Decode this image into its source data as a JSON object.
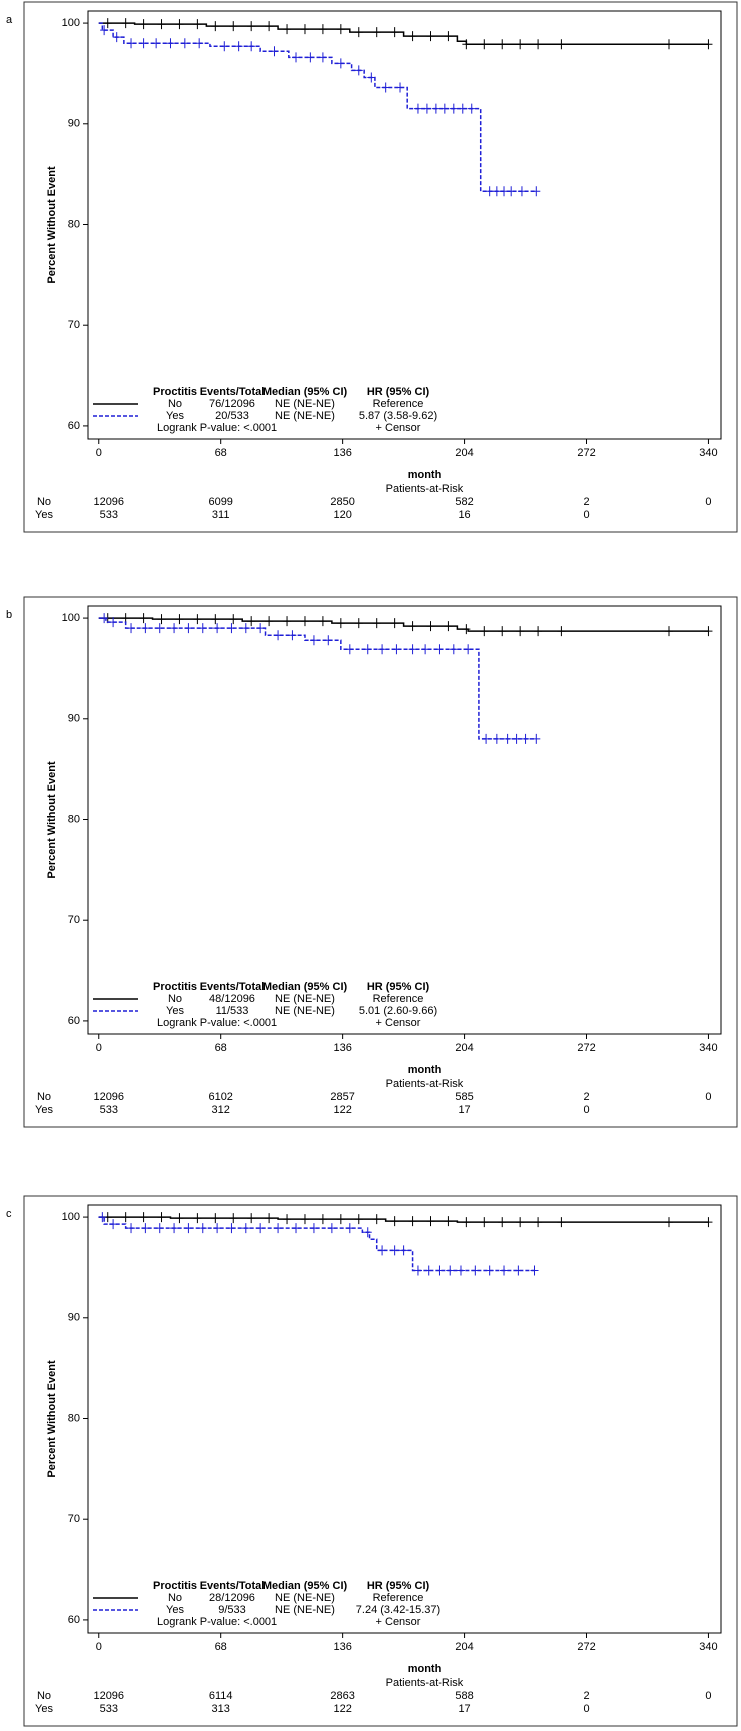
{
  "chart_data": [
    {
      "type": "km",
      "label": "a",
      "ylabel": "Percent Without Event",
      "xlabel": "month",
      "risk_title": "Patients-at-Risk",
      "xlim": [
        -6,
        347
      ],
      "ylim": [
        58.7,
        101.2
      ],
      "xticks": [
        0,
        68,
        136,
        204,
        272,
        340
      ],
      "yticks": [
        60,
        70,
        80,
        90,
        100
      ],
      "legend_header": [
        "Proctitis",
        "Events/Total",
        "Median (95% CI)",
        "HR (95% CI)"
      ],
      "logrank": "Logrank P-value: <.0001",
      "censor_label": "+ Censor",
      "series": [
        {
          "name": "No",
          "color": "#000000",
          "dash": false,
          "events": "76/12096",
          "median": "NE (NE-NE)",
          "hr": "Reference",
          "x": [
            0,
            20,
            60,
            100,
            140,
            170,
            200,
            205,
            340
          ],
          "values": [
            100,
            99.9,
            99.7,
            99.4,
            99.1,
            98.7,
            98.2,
            97.9,
            97.9
          ],
          "censor_x": [
            5,
            15,
            25,
            35,
            45,
            55,
            65,
            75,
            85,
            95,
            105,
            115,
            125,
            135,
            145,
            155,
            165,
            175,
            185,
            195,
            205,
            215,
            225,
            235,
            245,
            258,
            318,
            340
          ],
          "at_risk": [
            12096,
            6099,
            2850,
            582,
            2,
            0
          ]
        },
        {
          "name": "Yes",
          "color": "#1f1fd6",
          "dash": true,
          "events": "20/533",
          "median": "NE (NE-NE)",
          "hr": "5.87 (3.58-9.62)",
          "x": [
            0,
            2,
            8,
            14,
            62,
            90,
            106,
            130,
            141,
            148,
            154,
            172,
            213,
            244
          ],
          "values": [
            100,
            99.3,
            98.6,
            98.0,
            97.7,
            97.2,
            96.6,
            96.0,
            95.3,
            94.6,
            93.6,
            91.5,
            83.3,
            83.3
          ],
          "censor_x": [
            3,
            10,
            18,
            25,
            32,
            40,
            48,
            56,
            70,
            78,
            85,
            98,
            110,
            118,
            125,
            135,
            145,
            152,
            160,
            168,
            178,
            183,
            188,
            193,
            198,
            203,
            208,
            218,
            222,
            226,
            230,
            236,
            244
          ],
          "at_risk": [
            533,
            311,
            120,
            16,
            0,
            null
          ]
        }
      ]
    },
    {
      "type": "km",
      "label": "b",
      "ylabel": "Percent Without Event",
      "xlabel": "month",
      "risk_title": "Patients-at-Risk",
      "xlim": [
        -6,
        347
      ],
      "ylim": [
        58.7,
        101.2
      ],
      "xticks": [
        0,
        68,
        136,
        204,
        272,
        340
      ],
      "yticks": [
        60,
        70,
        80,
        90,
        100
      ],
      "legend_header": [
        "Proctitis",
        "Events/Total",
        "Median (95% CI)",
        "HR (95% CI)"
      ],
      "logrank": "Logrank P-value: <.0001",
      "censor_label": "+ Censor",
      "series": [
        {
          "name": "No",
          "color": "#000000",
          "dash": false,
          "events": "48/12096",
          "median": "NE (NE-NE)",
          "hr": "Reference",
          "x": [
            0,
            30,
            80,
            130,
            170,
            200,
            206,
            340
          ],
          "values": [
            100,
            99.9,
            99.7,
            99.5,
            99.2,
            98.9,
            98.7,
            98.7
          ],
          "censor_x": [
            5,
            15,
            25,
            35,
            45,
            55,
            65,
            75,
            85,
            95,
            105,
            115,
            125,
            135,
            145,
            155,
            165,
            175,
            185,
            195,
            205,
            215,
            225,
            235,
            245,
            258,
            318,
            340
          ],
          "at_risk": [
            12096,
            6102,
            2857,
            585,
            2,
            0
          ]
        },
        {
          "name": "Yes",
          "color": "#1f1fd6",
          "dash": true,
          "events": "11/533",
          "median": "NE (NE-NE)",
          "hr": "5.01 (2.60-9.66)",
          "x": [
            0,
            4,
            15,
            93,
            115,
            135,
            212,
            244
          ],
          "values": [
            100,
            99.6,
            99.0,
            98.3,
            97.8,
            96.9,
            88.0,
            88.0
          ],
          "censor_x": [
            3,
            8,
            18,
            26,
            34,
            42,
            50,
            58,
            66,
            74,
            82,
            90,
            100,
            108,
            120,
            128,
            140,
            150,
            158,
            166,
            175,
            182,
            190,
            198,
            206,
            216,
            222,
            228,
            233,
            238,
            244
          ],
          "at_risk": [
            533,
            312,
            122,
            17,
            0,
            null
          ]
        }
      ]
    },
    {
      "type": "km",
      "label": "c",
      "ylabel": "Percent Without Event",
      "xlabel": "month",
      "risk_title": "Patients-at-Risk",
      "xlim": [
        -6,
        347
      ],
      "ylim": [
        58.7,
        101.2
      ],
      "xticks": [
        0,
        68,
        136,
        204,
        272,
        340
      ],
      "yticks": [
        60,
        70,
        80,
        90,
        100
      ],
      "legend_header": [
        "Proctitis",
        "Events/Total",
        "Median (95% CI)",
        "HR (95% CI)"
      ],
      "logrank": "Logrank P-value: <.0001",
      "censor_label": "+ Censor",
      "series": [
        {
          "name": "No",
          "color": "#000000",
          "dash": false,
          "events": "28/12096",
          "median": "NE (NE-NE)",
          "hr": "Reference",
          "x": [
            0,
            40,
            100,
            160,
            200,
            340
          ],
          "values": [
            100,
            99.9,
            99.8,
            99.6,
            99.5,
            99.5
          ],
          "censor_x": [
            5,
            15,
            25,
            35,
            45,
            55,
            65,
            75,
            85,
            95,
            105,
            115,
            125,
            135,
            145,
            155,
            165,
            175,
            185,
            195,
            205,
            215,
            225,
            235,
            245,
            258,
            318,
            340
          ],
          "at_risk": [
            12096,
            6114,
            2863,
            588,
            2,
            0
          ]
        },
        {
          "name": "Yes",
          "color": "#1f1fd6",
          "dash": true,
          "events": "9/533",
          "median": "NE (NE-NE)",
          "hr": "7.24 (3.42-15.37)",
          "x": [
            0,
            3,
            15,
            147,
            151,
            155,
            175,
            243
          ],
          "values": [
            100,
            99.3,
            98.9,
            98.5,
            97.8,
            96.7,
            94.7,
            94.7
          ],
          "censor_x": [
            2,
            8,
            18,
            26,
            34,
            42,
            50,
            58,
            66,
            74,
            82,
            90,
            100,
            110,
            120,
            130,
            140,
            150,
            158,
            165,
            170,
            178,
            184,
            190,
            196,
            202,
            210,
            218,
            226,
            234,
            243
          ],
          "at_risk": [
            533,
            313,
            122,
            17,
            0,
            null
          ]
        }
      ]
    }
  ]
}
